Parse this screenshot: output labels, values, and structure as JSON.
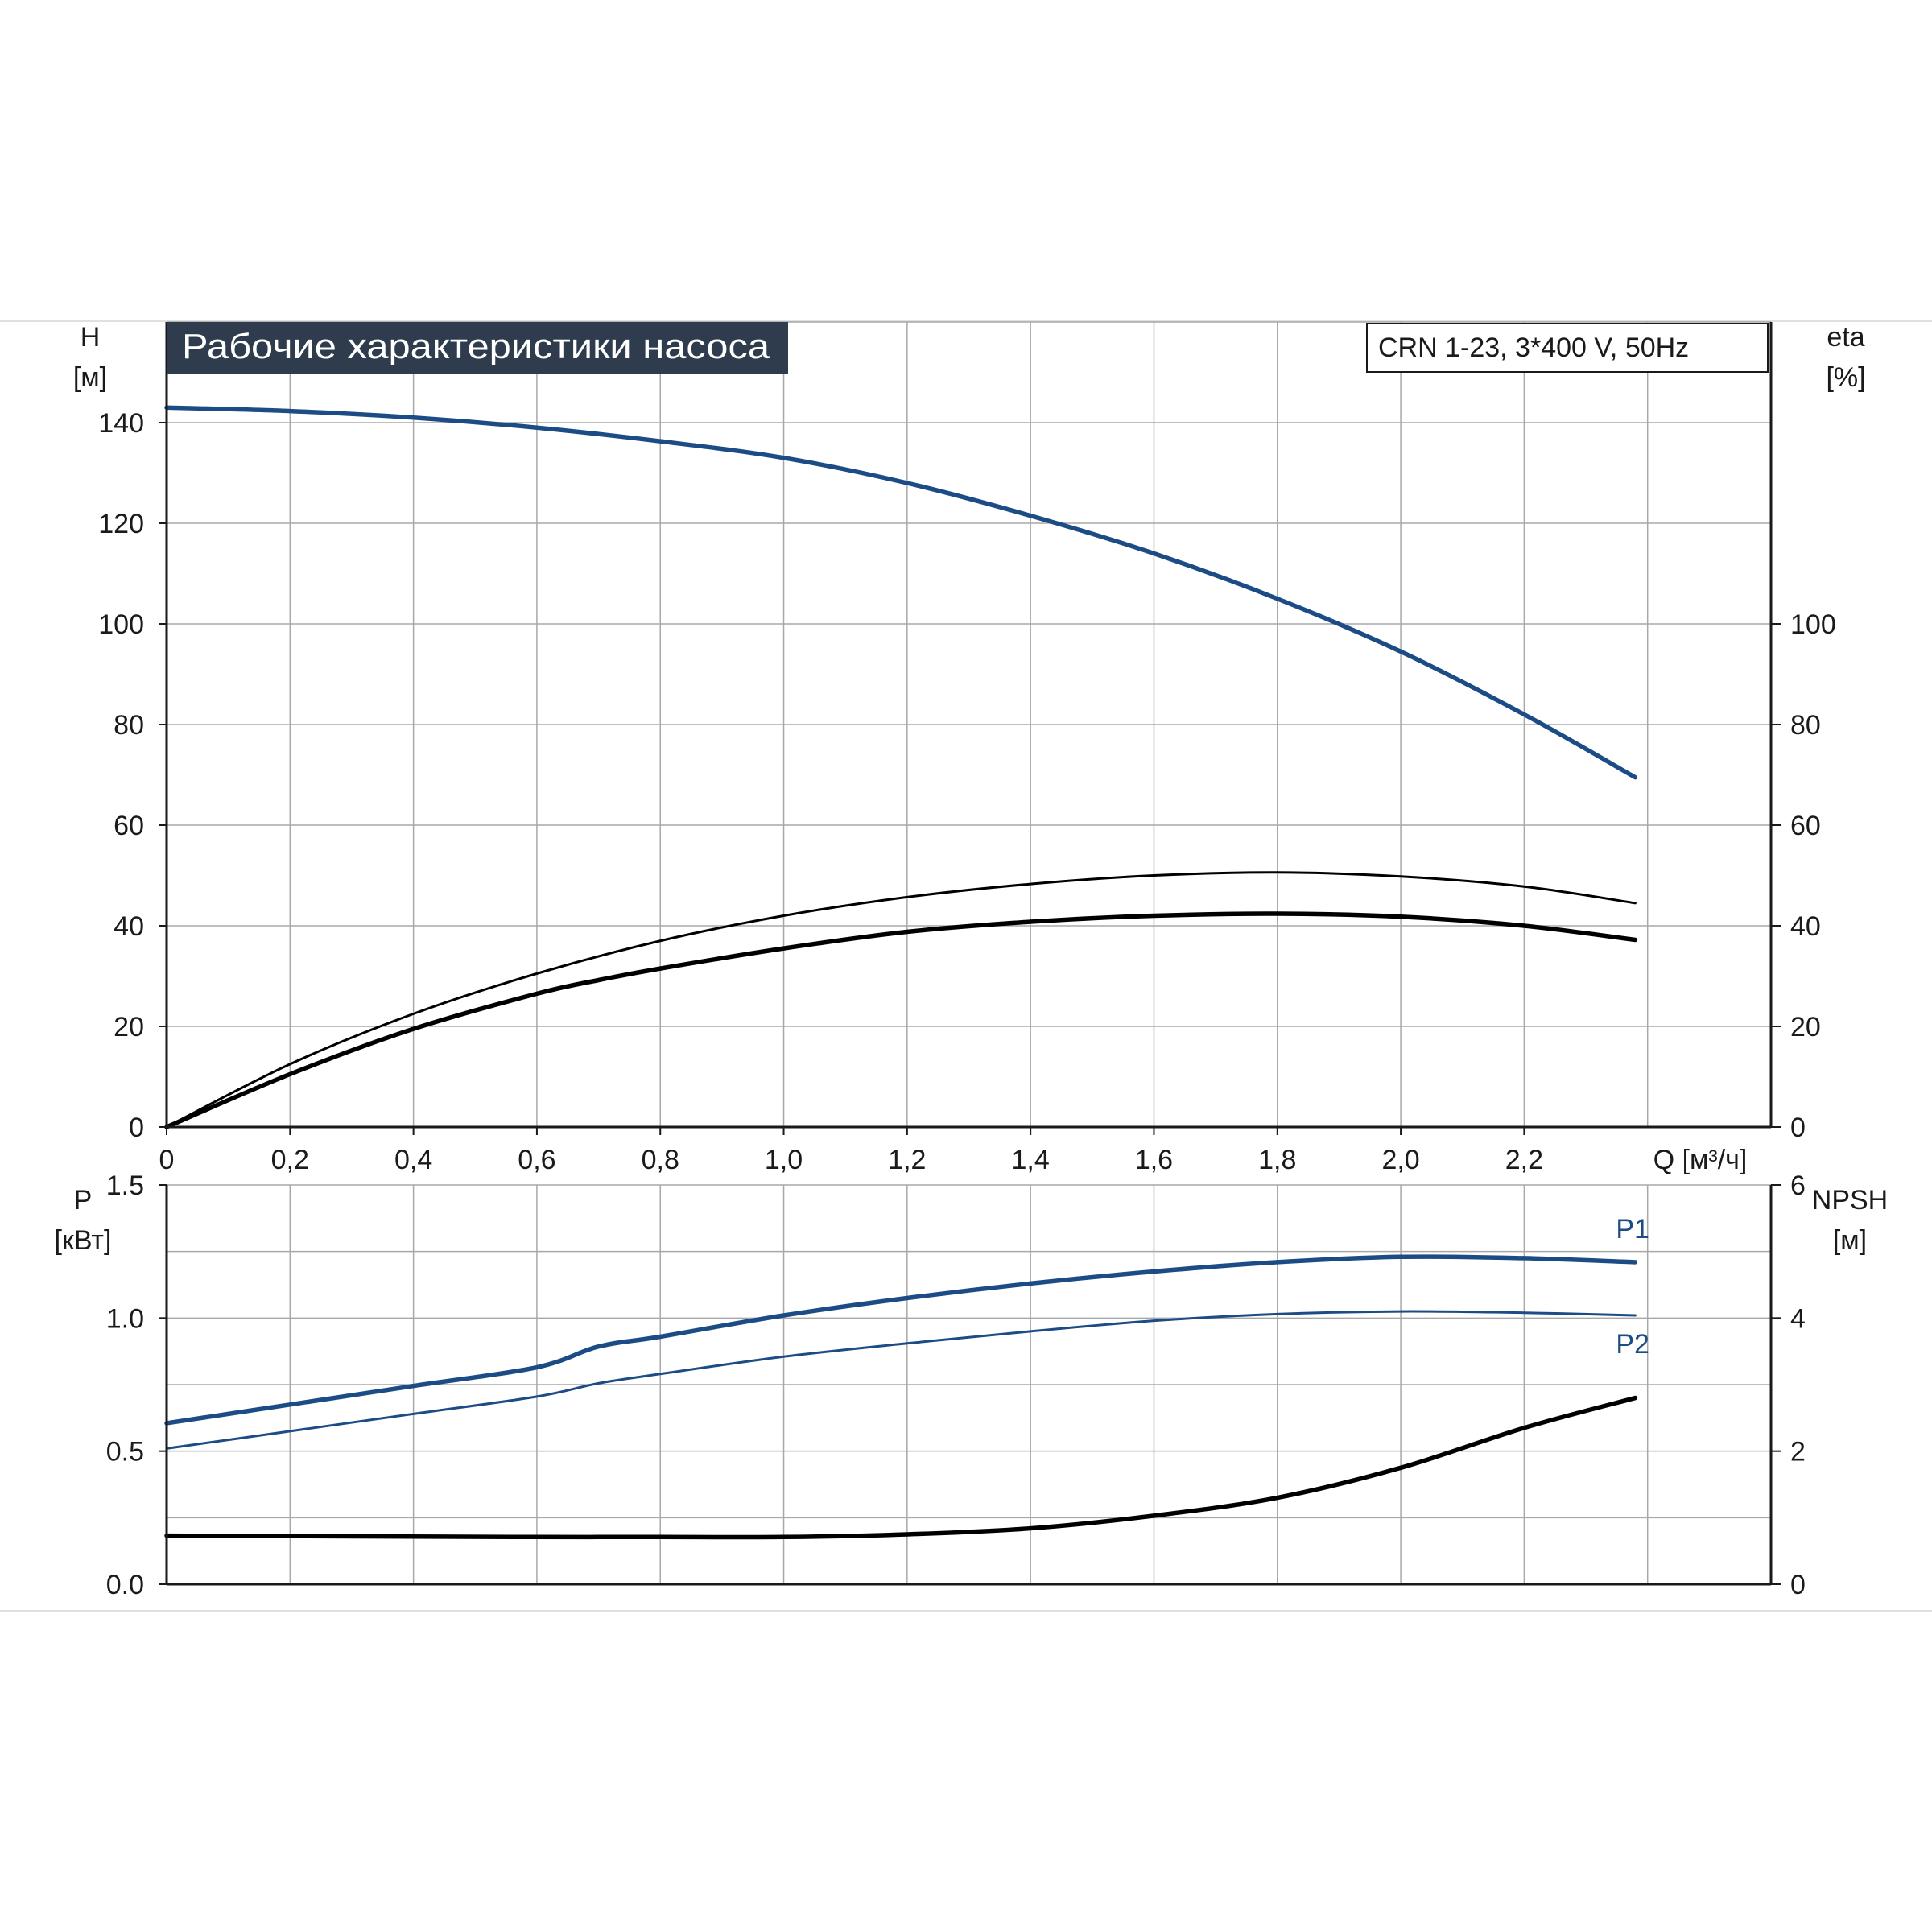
{
  "title": "Рабочие характеристики насоса",
  "model_label": "CRN 1-23, 3*400 V, 50Hz",
  "colors": {
    "blue": "#1c4c86",
    "black": "#000000",
    "grid": "#a8a8a8",
    "title_bg": "#2e3c4e",
    "title_text": "#ffffff",
    "text": "#1a1a1a"
  },
  "chart_data": [
    {
      "type": "line",
      "id": "head-efficiency",
      "x_label": "Q [м³/ч]",
      "x_ticks": [
        "0",
        "0,2",
        "0,4",
        "0,6",
        "0,8",
        "1,0",
        "1,2",
        "1,4",
        "1,6",
        "1,8",
        "2,0",
        "2,2"
      ],
      "xlim": [
        0,
        2.6
      ],
      "y_label": [
        "H",
        "[м]"
      ],
      "y_ticks": [
        "0",
        "20",
        "40",
        "60",
        "80",
        "100",
        "120",
        "140"
      ],
      "ylim": [
        0,
        160
      ],
      "y2_label": [
        "eta",
        "[%]"
      ],
      "y2_ticks": [
        "0",
        "20",
        "40",
        "60",
        "80",
        "100"
      ],
      "y2lim": [
        0,
        160
      ],
      "grid": true,
      "series": [
        {
          "id": "head",
          "axis": "y",
          "color": "blue",
          "points": [
            [
              0,
              143
            ],
            [
              0.2,
              142.3
            ],
            [
              0.4,
              141
            ],
            [
              0.6,
              139
            ],
            [
              0.8,
              136.3
            ],
            [
              1.0,
              133
            ],
            [
              1.2,
              128
            ],
            [
              1.4,
              121.5
            ],
            [
              1.6,
              114
            ],
            [
              1.8,
              105
            ],
            [
              2.0,
              94.5
            ],
            [
              2.2,
              82
            ],
            [
              2.38,
              69.5
            ]
          ]
        },
        {
          "id": "eta-hydraulic",
          "axis": "y2",
          "color": "black",
          "points": [
            [
              0,
              0
            ],
            [
              0.2,
              12.5
            ],
            [
              0.4,
              22.5
            ],
            [
              0.6,
              30.5
            ],
            [
              0.8,
              37
            ],
            [
              1.0,
              42
            ],
            [
              1.2,
              45.7
            ],
            [
              1.4,
              48.3
            ],
            [
              1.6,
              50
            ],
            [
              1.8,
              50.6
            ],
            [
              2.0,
              49.8
            ],
            [
              2.2,
              47.8
            ],
            [
              2.38,
              44.5
            ]
          ]
        },
        {
          "id": "eta-total",
          "axis": "y2",
          "color": "black",
          "points": [
            [
              0,
              0
            ],
            [
              0.2,
              10.5
            ],
            [
              0.4,
              19.5
            ],
            [
              0.6,
              26.5
            ],
            [
              0.7,
              29.2
            ],
            [
              0.8,
              31.5
            ],
            [
              1.0,
              35.5
            ],
            [
              1.2,
              38.8
            ],
            [
              1.4,
              40.8
            ],
            [
              1.6,
              42
            ],
            [
              1.8,
              42.4
            ],
            [
              2.0,
              41.8
            ],
            [
              2.2,
              40
            ],
            [
              2.38,
              37.2
            ]
          ]
        }
      ]
    },
    {
      "type": "line",
      "id": "power-npsh",
      "x_label": "",
      "xlim": [
        0,
        2.6
      ],
      "y_label": [
        "P",
        "[кВт]"
      ],
      "y_ticks": [
        "0.0",
        "0.5",
        "1.0",
        "1.5"
      ],
      "ylim": [
        0,
        1.5
      ],
      "y2_label": [
        "NPSH",
        "[м]"
      ],
      "y2_ticks": [
        "0",
        "2",
        "4",
        "6"
      ],
      "y2lim": [
        0,
        6
      ],
      "grid": true,
      "series": [
        {
          "id": "P1",
          "name": "P1",
          "axis": "y",
          "color": "blue",
          "points": [
            [
              0,
              0.605
            ],
            [
              0.2,
              0.675
            ],
            [
              0.4,
              0.745
            ],
            [
              0.6,
              0.815
            ],
            [
              0.7,
              0.893
            ],
            [
              0.8,
              0.93
            ],
            [
              1.0,
              1.01
            ],
            [
              1.2,
              1.075
            ],
            [
              1.4,
              1.13
            ],
            [
              1.6,
              1.175
            ],
            [
              1.8,
              1.21
            ],
            [
              2.0,
              1.23
            ],
            [
              2.2,
              1.225
            ],
            [
              2.38,
              1.21
            ]
          ]
        },
        {
          "id": "P2",
          "name": "P2",
          "axis": "y",
          "color": "blue",
          "points": [
            [
              0,
              0.51
            ],
            [
              0.2,
              0.575
            ],
            [
              0.4,
              0.64
            ],
            [
              0.6,
              0.705
            ],
            [
              0.7,
              0.755
            ],
            [
              0.8,
              0.79
            ],
            [
              1.0,
              0.855
            ],
            [
              1.2,
              0.905
            ],
            [
              1.4,
              0.95
            ],
            [
              1.6,
              0.99
            ],
            [
              1.8,
              1.015
            ],
            [
              2.0,
              1.025
            ],
            [
              2.2,
              1.02
            ],
            [
              2.38,
              1.01
            ]
          ]
        },
        {
          "id": "npsh",
          "axis": "y2",
          "color": "black",
          "points": [
            [
              0,
              0.73
            ],
            [
              0.6,
              0.71
            ],
            [
              0.7,
              0.71
            ],
            [
              0.8,
              0.71
            ],
            [
              1.0,
              0.71
            ],
            [
              1.2,
              0.75
            ],
            [
              1.4,
              0.84
            ],
            [
              1.6,
              1.03
            ],
            [
              1.8,
              1.3
            ],
            [
              2.0,
              1.75
            ],
            [
              2.2,
              2.35
            ],
            [
              2.38,
              2.8
            ]
          ]
        }
      ]
    }
  ]
}
